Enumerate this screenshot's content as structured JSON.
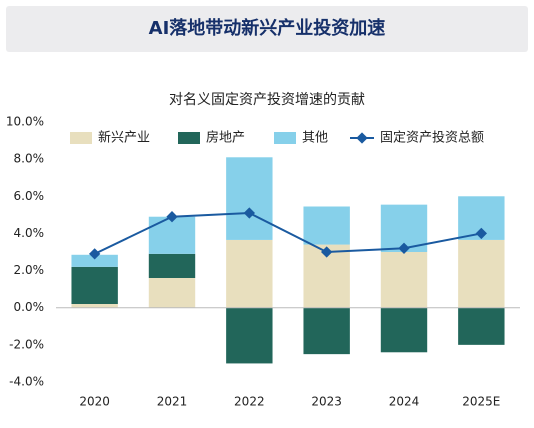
{
  "header": {
    "title": "AI落地带动新兴产业投资加速"
  },
  "chart_data": {
    "type": "stacked-bar-line",
    "title": "对名义固定资产投资增速的贡献",
    "categories": [
      "2020",
      "2021",
      "2022",
      "2023",
      "2024",
      "2025E"
    ],
    "series": [
      {
        "name": "新兴产业",
        "color": "#e8dfbe",
        "type": "bar",
        "values": [
          0.2,
          1.6,
          3.65,
          3.4,
          3.0,
          3.65
        ]
      },
      {
        "name": "房地产",
        "color": "#22665a",
        "type": "bar",
        "values": [
          2.0,
          1.3,
          -3.0,
          -2.5,
          -2.4,
          -2.0
        ]
      },
      {
        "name": "其他",
        "color": "#86d0ea",
        "type": "bar",
        "values": [
          0.65,
          2.0,
          4.45,
          2.05,
          2.55,
          2.35
        ]
      },
      {
        "name": "固定资产投资总额",
        "color": "#1a5aa0",
        "type": "line",
        "values": [
          2.9,
          4.9,
          5.1,
          3.0,
          3.2,
          4.0
        ]
      }
    ],
    "ylim": [
      -4,
      10
    ],
    "yticks": [
      {
        "value": -4,
        "label": "-4.0%"
      },
      {
        "value": -2,
        "label": "-2.0%"
      },
      {
        "value": 0,
        "label": "0.0%"
      },
      {
        "value": 2,
        "label": "2.0%"
      },
      {
        "value": 4,
        "label": "4.0%"
      },
      {
        "value": 6,
        "label": "6.0%"
      },
      {
        "value": 8,
        "label": "8.0%"
      },
      {
        "value": 10,
        "label": "10.0%"
      }
    ],
    "legend": "top"
  }
}
